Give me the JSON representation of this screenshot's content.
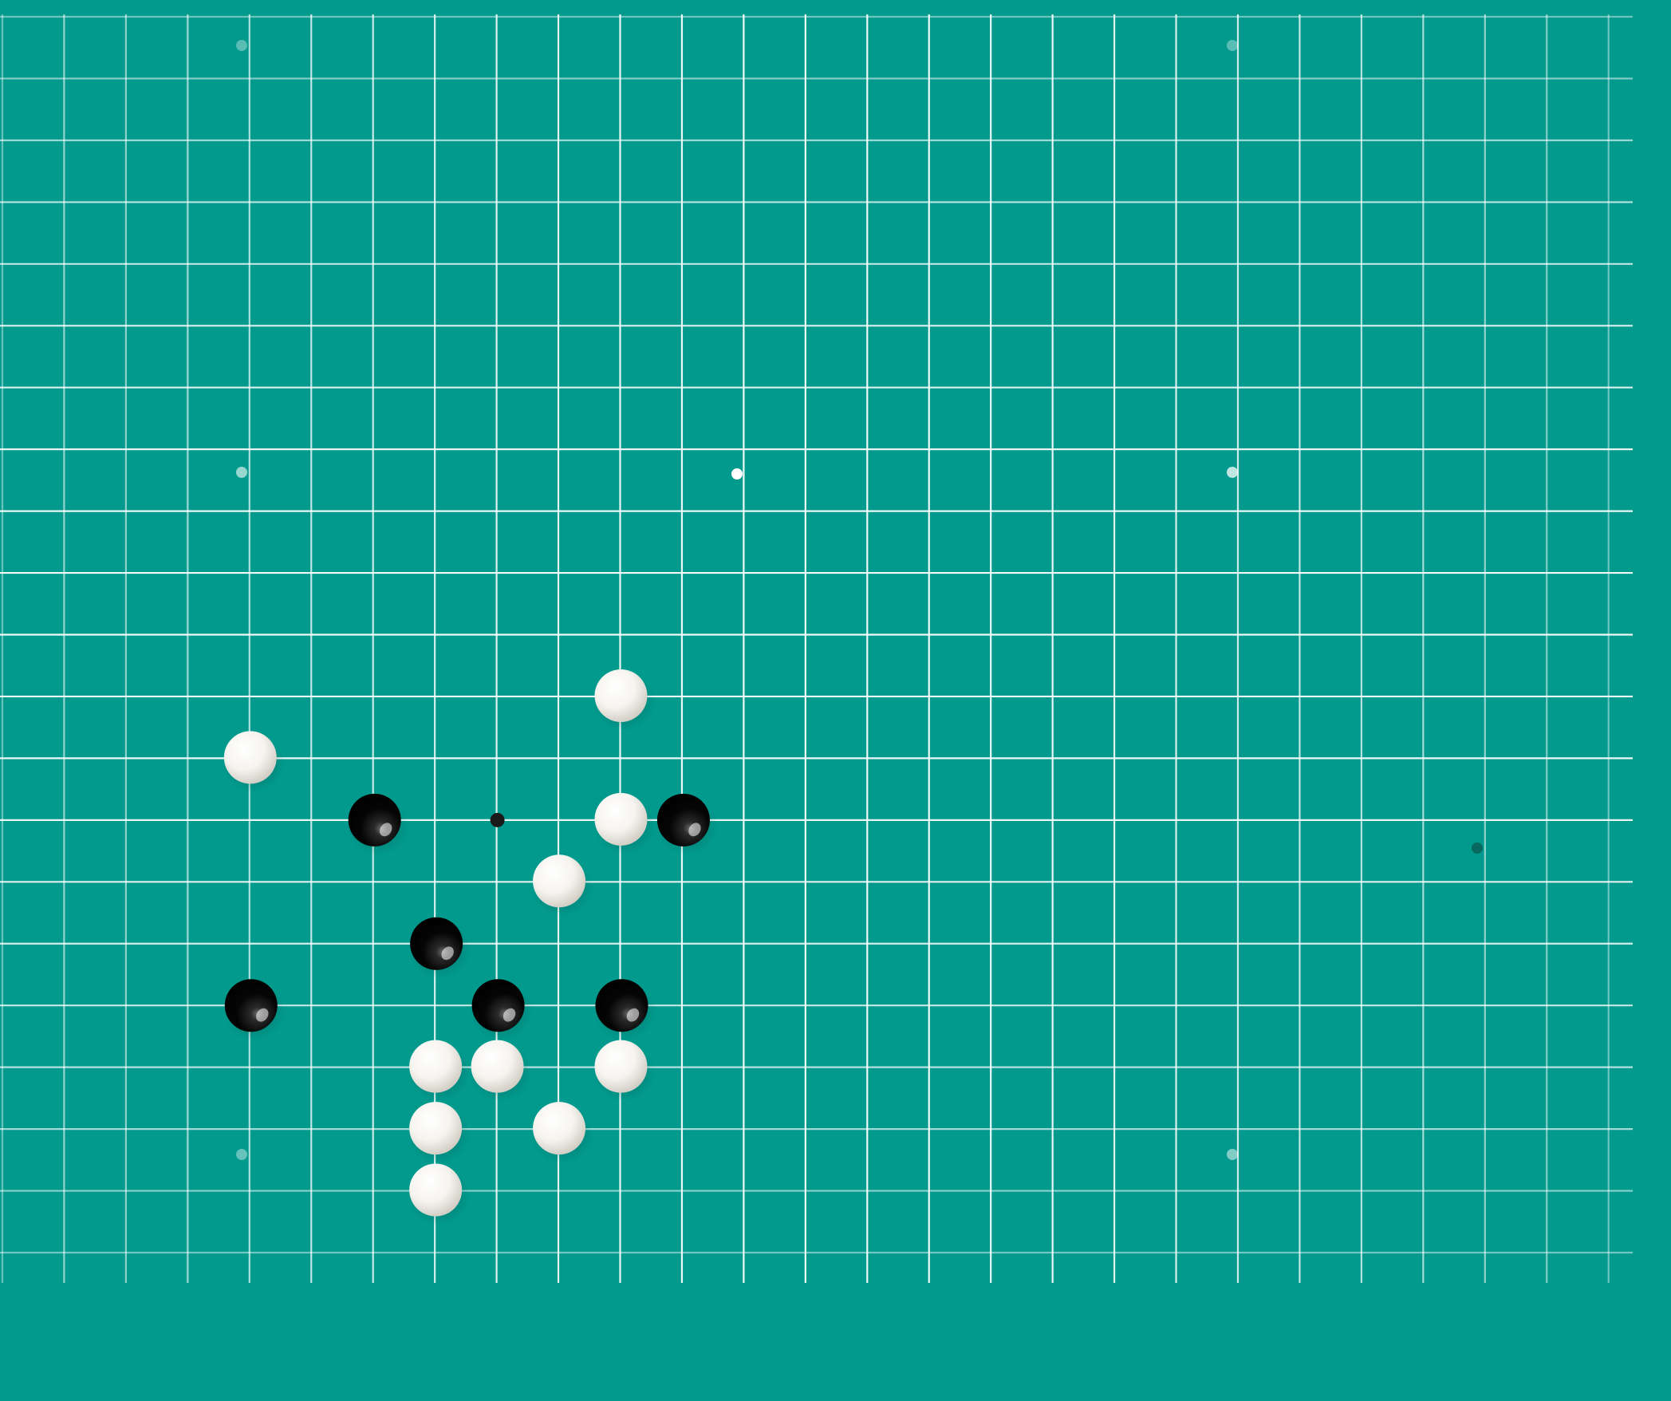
{
  "board": {
    "background_color": "#019a8d",
    "line_color": "#ffffff",
    "star_point_color": "#ffffff",
    "black_stone_color": "#000000",
    "white_stone_color": "#ffffff",
    "last_move_marker_color": "#1a1a1a",
    "stones": [
      {
        "color": "white",
        "col": 10,
        "row": 11
      },
      {
        "color": "white",
        "col": 4,
        "row": 12
      },
      {
        "color": "black",
        "col": 6,
        "row": 13
      },
      {
        "color": "white",
        "col": 10,
        "row": 13
      },
      {
        "color": "black",
        "col": 11,
        "row": 13
      },
      {
        "color": "white",
        "col": 9,
        "row": 14
      },
      {
        "color": "black",
        "col": 7,
        "row": 15
      },
      {
        "color": "black",
        "col": 4,
        "row": 16
      },
      {
        "color": "black",
        "col": 8,
        "row": 16
      },
      {
        "color": "black",
        "col": 10,
        "row": 16
      },
      {
        "color": "white",
        "col": 7,
        "row": 17
      },
      {
        "color": "white",
        "col": 8,
        "row": 17
      },
      {
        "color": "white",
        "col": 10,
        "row": 17
      },
      {
        "color": "white",
        "col": 7,
        "row": 18
      },
      {
        "color": "white",
        "col": 9,
        "row": 18
      },
      {
        "color": "white",
        "col": 7,
        "row": 19
      }
    ],
    "last_move_marker": {
      "col": 8,
      "row": 13
    }
  }
}
